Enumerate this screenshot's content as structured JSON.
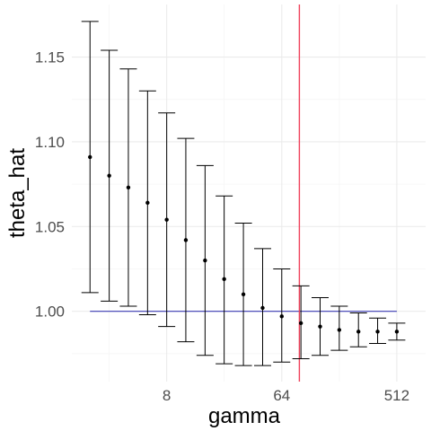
{
  "chart_data": {
    "type": "scatter",
    "xlabel": "gamma",
    "ylabel": "theta_hat",
    "x_scale": "log2",
    "x_ticks": [
      8,
      64,
      512
    ],
    "x_tick_labels": [
      "8",
      "64",
      "512"
    ],
    "y_ticks": [
      1.0,
      1.05,
      1.1,
      1.15
    ],
    "y_tick_labels": [
      "1.00",
      "1.05",
      "1.10",
      "1.15"
    ],
    "xlim": [
      1.44,
      861.8
    ],
    "ylim": [
      0.9585,
      1.181
    ],
    "grid": true,
    "points": [
      {
        "x": 2,
        "y": 1.091,
        "ymin": 1.011,
        "ymax": 1.171
      },
      {
        "x": 2.83,
        "y": 1.08,
        "ymin": 1.006,
        "ymax": 1.154
      },
      {
        "x": 4,
        "y": 1.073,
        "ymin": 1.003,
        "ymax": 1.143
      },
      {
        "x": 5.66,
        "y": 1.064,
        "ymin": 0.998,
        "ymax": 1.13
      },
      {
        "x": 8,
        "y": 1.054,
        "ymin": 0.991,
        "ymax": 1.117
      },
      {
        "x": 11.3,
        "y": 1.042,
        "ymin": 0.982,
        "ymax": 1.102
      },
      {
        "x": 16,
        "y": 1.03,
        "ymin": 0.974,
        "ymax": 1.086
      },
      {
        "x": 22.6,
        "y": 1.019,
        "ymin": 0.969,
        "ymax": 1.068
      },
      {
        "x": 32,
        "y": 1.01,
        "ymin": 0.968,
        "ymax": 1.052
      },
      {
        "x": 45.3,
        "y": 1.002,
        "ymin": 0.968,
        "ymax": 1.037
      },
      {
        "x": 64,
        "y": 0.997,
        "ymin": 0.97,
        "ymax": 1.025
      },
      {
        "x": 90.5,
        "y": 0.993,
        "ymin": 0.972,
        "ymax": 1.015
      },
      {
        "x": 128,
        "y": 0.991,
        "ymin": 0.974,
        "ymax": 1.008
      },
      {
        "x": 181,
        "y": 0.989,
        "ymin": 0.977,
        "ymax": 1.003
      },
      {
        "x": 256,
        "y": 0.988,
        "ymin": 0.979,
        "ymax": 0.999
      },
      {
        "x": 362,
        "y": 0.988,
        "ymin": 0.981,
        "ymax": 0.996
      },
      {
        "x": 512,
        "y": 0.988,
        "ymin": 0.983,
        "ymax": 0.993
      }
    ],
    "hline": {
      "y": 1.0,
      "x_from": 2,
      "x_to": 512,
      "color": "#3b3bb3"
    },
    "vline": {
      "x": 88,
      "color": "#f0415b"
    },
    "colors": {
      "grid_major": "#ebebeb",
      "grid_minor": "#f5f5f5",
      "points": "#000000"
    }
  }
}
